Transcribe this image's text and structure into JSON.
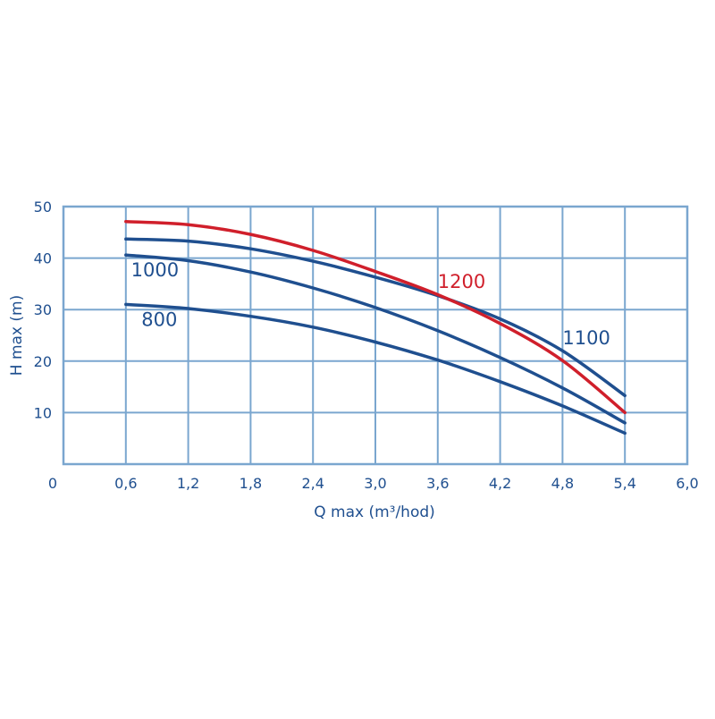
{
  "chart_data": {
    "type": "line",
    "xlabel": "Q max (m³/hod)",
    "ylabel": "H max (m)",
    "xlim": [
      0,
      6.0
    ],
    "ylim": [
      0,
      50
    ],
    "x_ticks": [
      0,
      0.6,
      1.2,
      1.8,
      2.4,
      3.0,
      3.6,
      4.2,
      4.8,
      5.4,
      6.0
    ],
    "x_tick_labels": [
      "0",
      "0,6",
      "1,2",
      "1,8",
      "2,4",
      "3,0",
      "3,6",
      "4,2",
      "4,8",
      "5,4",
      "6,0"
    ],
    "y_ticks": [
      10,
      20,
      30,
      40,
      50
    ],
    "y_tick_labels": [
      "10",
      "20",
      "30",
      "40",
      "50"
    ],
    "grid": true,
    "colors": {
      "axis": "#1f4f8f",
      "grid": "#7aa6cf",
      "series_blue": "#1f4f8f",
      "series_red": "#d01f2b"
    },
    "series": [
      {
        "name": "800",
        "color": "#1f4f8f",
        "x": [
          0.6,
          1.2,
          1.8,
          2.4,
          3.0,
          3.6,
          4.2,
          4.8,
          5.4
        ],
        "y": [
          31,
          30.2,
          28.7,
          26.6,
          23.7,
          20.2,
          16.0,
          11.3,
          6.0
        ]
      },
      {
        "name": "1000",
        "color": "#1f4f8f",
        "x": [
          0.6,
          1.2,
          1.8,
          2.4,
          3.0,
          3.6,
          4.2,
          4.8,
          5.4
        ],
        "y": [
          40.6,
          39.5,
          37.3,
          34.2,
          30.4,
          25.9,
          20.7,
          14.8,
          8.0
        ]
      },
      {
        "name": "1100",
        "color": "#1f4f8f",
        "x": [
          0.6,
          1.2,
          1.8,
          2.4,
          3.0,
          3.6,
          4.2,
          4.8,
          5.4
        ],
        "y": [
          43.7,
          43.3,
          41.8,
          39.4,
          36.3,
          32.7,
          28.2,
          22.0,
          13.3
        ]
      },
      {
        "name": "1200",
        "color": "#d01f2b",
        "x": [
          0.6,
          1.2,
          1.8,
          2.4,
          3.0,
          3.6,
          4.2,
          4.8,
          5.4
        ],
        "y": [
          47.1,
          46.5,
          44.6,
          41.5,
          37.4,
          32.9,
          27.3,
          20.1,
          10.0
        ]
      }
    ],
    "annotations": [
      {
        "text": "1000",
        "x": 0.65,
        "y": 36.5,
        "color": "#1f4f8f"
      },
      {
        "text": "800",
        "x": 0.75,
        "y": 26.8,
        "color": "#1f4f8f"
      },
      {
        "text": "1200",
        "x": 3.6,
        "y": 34.2,
        "color": "#d01f2b"
      },
      {
        "text": "1100",
        "x": 4.8,
        "y": 23.3,
        "color": "#1f4f8f"
      }
    ]
  }
}
